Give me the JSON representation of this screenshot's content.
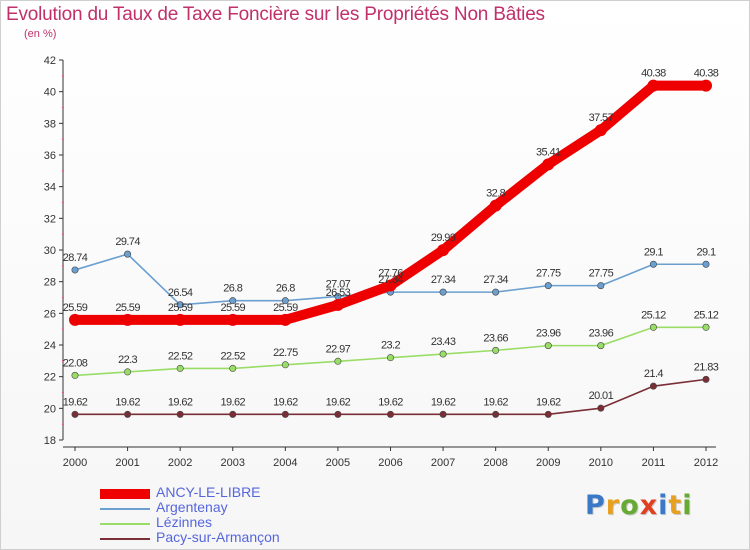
{
  "header": {
    "title": "Evolution du Taux de Taxe Foncière sur les Propriétés Non Bâties",
    "subtitle": "(en %)"
  },
  "chart_data": {
    "type": "line",
    "title": "Evolution du Taux de Taxe Foncière sur les Propriétés Non Bâties",
    "subtitle": "(en %)",
    "xlabel": "",
    "ylabel": "",
    "x": [
      2000,
      2001,
      2002,
      2003,
      2004,
      2005,
      2006,
      2007,
      2008,
      2009,
      2010,
      2011,
      2012
    ],
    "ylim": [
      18,
      42
    ],
    "yticks": [
      18,
      20,
      22,
      24,
      26,
      28,
      30,
      32,
      34,
      36,
      38,
      40,
      42
    ],
    "grid": false,
    "legend_position": "bottom-left",
    "series": [
      {
        "name": "ANCY-LE-LIBRE",
        "color": "#ee0000",
        "values": [
          25.59,
          25.59,
          25.59,
          25.59,
          25.59,
          26.53,
          27.76,
          29.99,
          32.8,
          35.41,
          37.57,
          40.38,
          40.38
        ],
        "labels": [
          "25.59",
          "25.59",
          "25.59",
          "25.59",
          "25.59",
          "26.53",
          "27.76",
          "29.99",
          "32.8",
          "35.41",
          "37.57",
          "40.38",
          "40.38"
        ]
      },
      {
        "name": "Argentenay",
        "color": "#6b9fd0",
        "values": [
          28.74,
          29.74,
          26.54,
          26.8,
          26.8,
          27.07,
          27.34,
          27.34,
          27.34,
          27.75,
          27.75,
          29.1,
          29.1
        ],
        "labels": [
          "28.74",
          "29.74",
          "26.54",
          "26.8",
          "26.8",
          "27.07",
          "27.34",
          "27.34",
          "27.34",
          "27.75",
          "27.75",
          "29.1",
          "29.1"
        ]
      },
      {
        "name": "Lézinnes",
        "color": "#99dd66",
        "values": [
          22.08,
          22.3,
          22.52,
          22.52,
          22.75,
          22.97,
          23.2,
          23.43,
          23.66,
          23.96,
          23.96,
          25.12,
          25.12
        ],
        "labels": [
          "22.08",
          "22.3",
          "22.52",
          "22.52",
          "22.75",
          "22.97",
          "23.2",
          "23.43",
          "23.66",
          "23.96",
          "23.96",
          "25.12",
          "25.12"
        ]
      },
      {
        "name": "Pacy-sur-Armançon",
        "color": "#7a2e36",
        "values": [
          19.62,
          19.62,
          19.62,
          19.62,
          19.62,
          19.62,
          19.62,
          19.62,
          19.62,
          19.62,
          20.01,
          21.4,
          21.83
        ],
        "labels": [
          "19.62",
          "19.62",
          "19.62",
          "19.62",
          "19.62",
          "19.62",
          "19.62",
          "19.62",
          "19.62",
          "19.62",
          "20.01",
          "21.4",
          "21.83"
        ]
      }
    ]
  },
  "legend": [
    {
      "label": "ANCY-LE-LIBRE",
      "color": "#ee0000",
      "label_color": "#5566dd"
    },
    {
      "label": "Argentenay",
      "color": "#6b9fd0",
      "label_color": "#5566dd"
    },
    {
      "label": "Lézinnes",
      "color": "#99dd66",
      "label_color": "#5566dd"
    },
    {
      "label": "Pacy-sur-Armançon",
      "color": "#7a2e36",
      "label_color": "#5566dd"
    }
  ],
  "logo": {
    "text": "Proxiti",
    "colors": [
      "#3b78c8",
      "#e8a020",
      "#66aa33",
      "#e04020",
      "#3b78c8",
      "#e8a020",
      "#66aa33"
    ]
  }
}
